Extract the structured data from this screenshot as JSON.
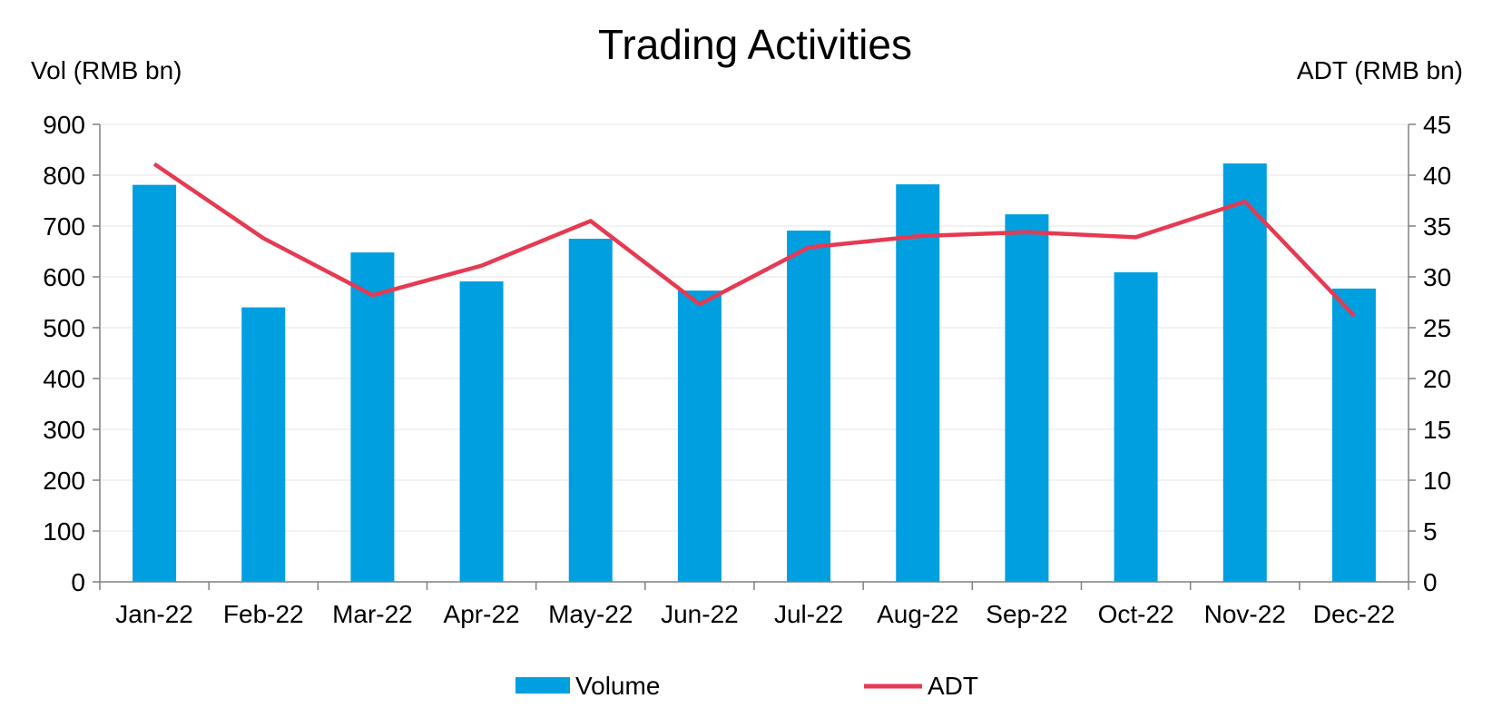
{
  "chart_data": {
    "type": "bar",
    "title": "Trading Activities",
    "ylabel_left": "Vol (RMB bn)",
    "ylabel_right": "ADT (RMB bn)",
    "xlabel": "",
    "categories": [
      "Jan-22",
      "Feb-22",
      "Mar-22",
      "Apr-22",
      "May-22",
      "Jun-22",
      "Jul-22",
      "Aug-22",
      "Sep-22",
      "Oct-22",
      "Nov-22",
      "Dec-22"
    ],
    "ylim_left": [
      0,
      900
    ],
    "ylim_right": [
      0,
      45
    ],
    "yticks_left": [
      "0",
      "100",
      "200",
      "300",
      "400",
      "500",
      "600",
      "700",
      "800",
      "900"
    ],
    "yticks_right": [
      "0",
      "5",
      "10",
      "15",
      "20",
      "25",
      "30",
      "35",
      "40",
      "45"
    ],
    "grid": true,
    "legend_position": "bottom",
    "series": [
      {
        "name": "Volume",
        "type": "bar",
        "axis": "left",
        "color": "#009FDF",
        "values": [
          781,
          540,
          648,
          591,
          675,
          573,
          691,
          782,
          723,
          609,
          823,
          577
        ]
      },
      {
        "name": "ADT",
        "type": "line",
        "axis": "right",
        "color": "#E63A52",
        "values": [
          41.1,
          33.8,
          28.2,
          31.1,
          35.5,
          27.3,
          32.9,
          34.0,
          34.4,
          33.9,
          37.4,
          26.2
        ]
      }
    ]
  }
}
